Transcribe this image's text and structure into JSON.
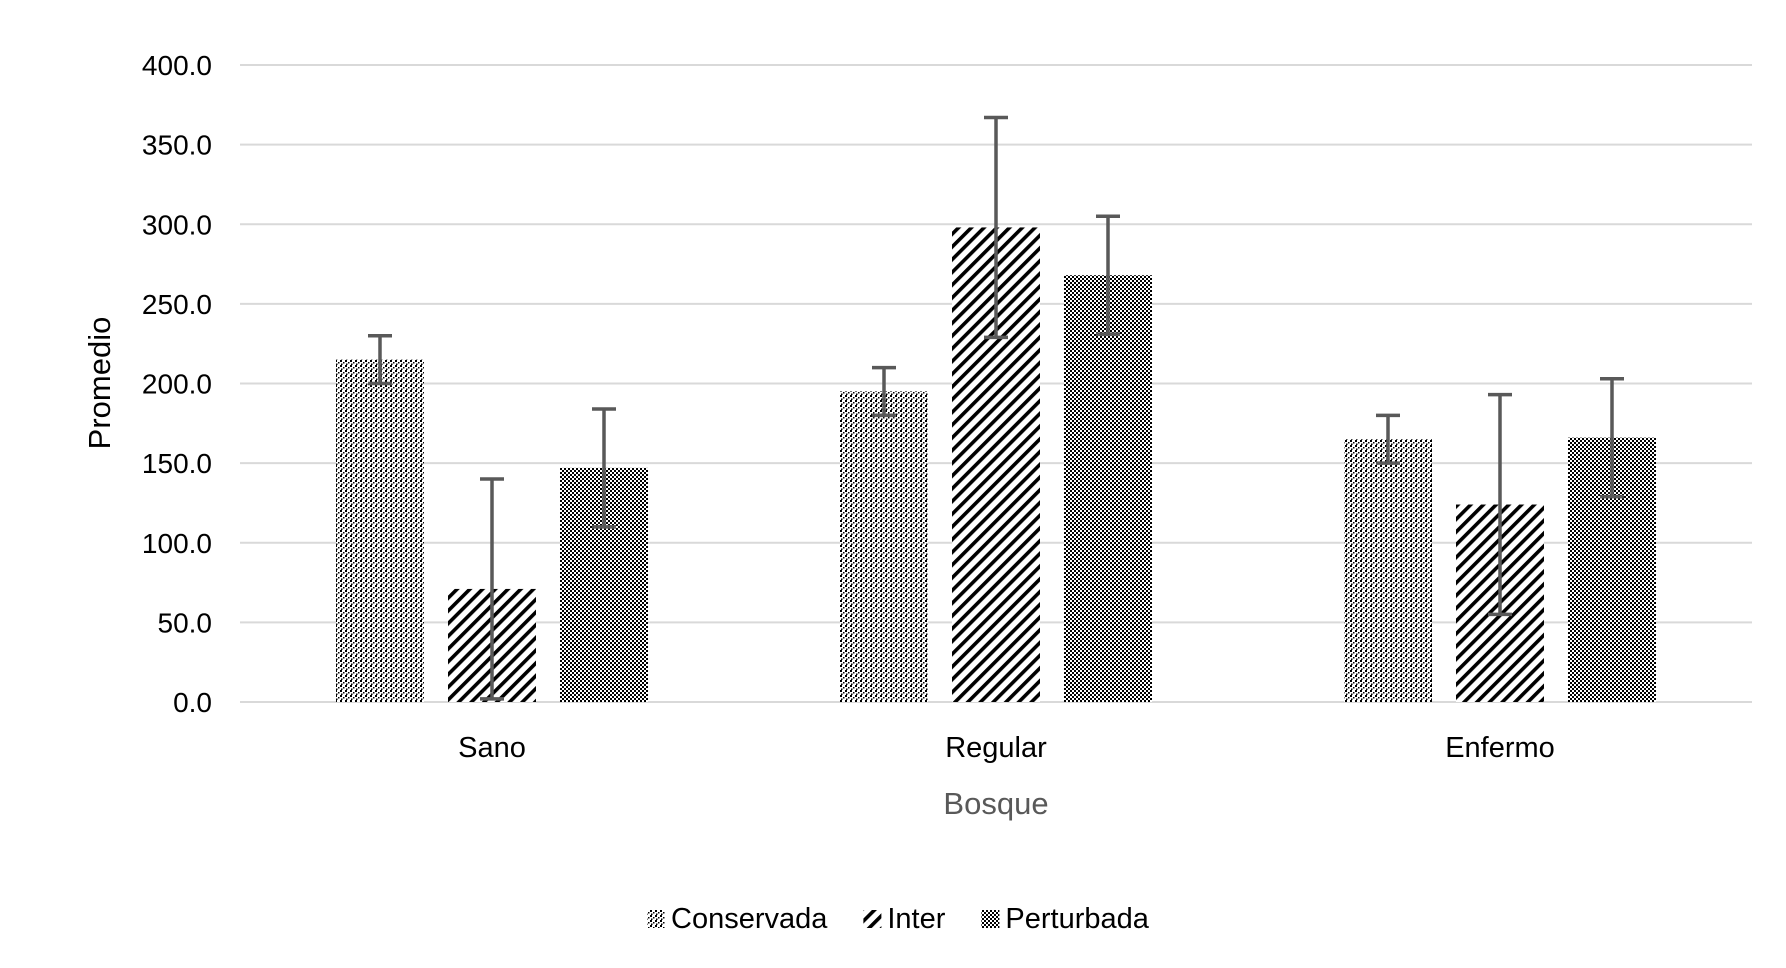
{
  "chart_data": {
    "type": "bar",
    "title": "",
    "xlabel": "Bosque",
    "ylabel": "Promedio",
    "categories": [
      "Sano",
      "Regular",
      "Enfermo"
    ],
    "ylim": [
      0,
      400
    ],
    "yticks": [
      "0.0",
      "50.0",
      "100.0",
      "150.0",
      "200.0",
      "250.0",
      "300.0",
      "350.0",
      "400.0"
    ],
    "grid": true,
    "legend_position": "bottom",
    "series": [
      {
        "name": "Conservada",
        "pattern": "dots",
        "values": [
          215,
          195,
          165
        ],
        "error": [
          15,
          15,
          15
        ]
      },
      {
        "name": "Inter",
        "pattern": "diagonal-stripes",
        "values": [
          71,
          298,
          124
        ],
        "error": [
          69,
          69,
          69
        ]
      },
      {
        "name": "Perturbada",
        "pattern": "dense-dots",
        "values": [
          147,
          268,
          166
        ],
        "error": [
          37,
          37,
          37
        ]
      }
    ],
    "colors": {
      "grid": "#d9d9d9",
      "error_bar": "#595959",
      "pattern_ink": "#000000"
    }
  }
}
